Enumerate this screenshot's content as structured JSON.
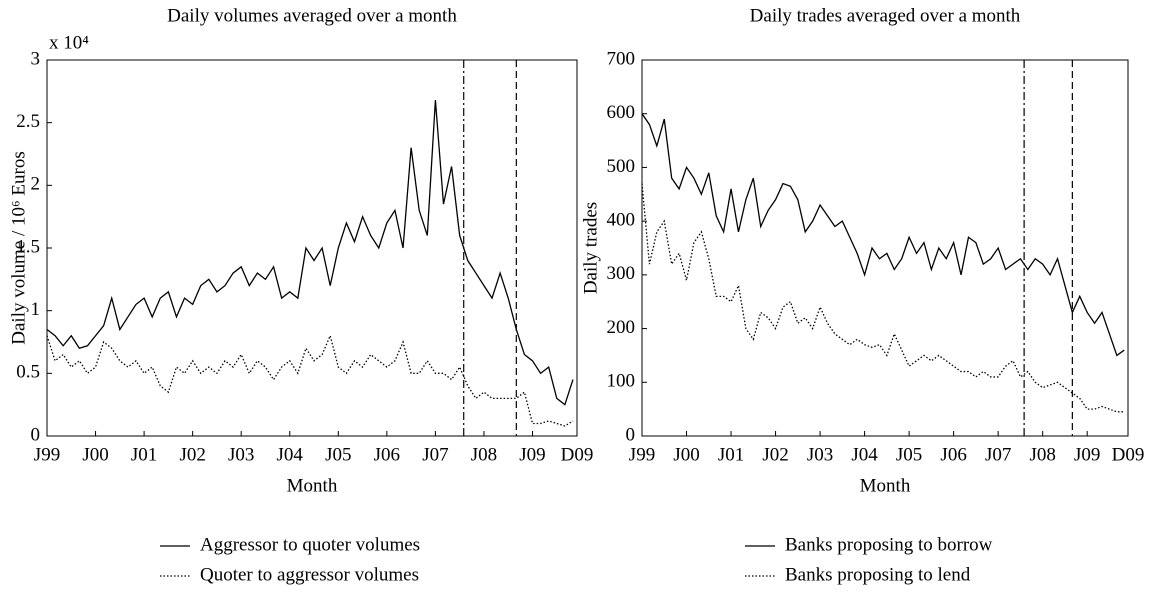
{
  "chart_data": [
    {
      "type": "line",
      "title": "Daily volumes averaged over a month",
      "x_label": "Month",
      "y_label": "Daily volume / 10⁶ Euros",
      "y_multiplier": "x 10⁴",
      "x": [
        0,
        2,
        4,
        6,
        8,
        10,
        12,
        14,
        16,
        18,
        20,
        22,
        24,
        26,
        28,
        30,
        32,
        34,
        36,
        38,
        40,
        42,
        44,
        46,
        48,
        50,
        52,
        54,
        56,
        58,
        60,
        62,
        64,
        66,
        68,
        70,
        72,
        74,
        76,
        78,
        80,
        82,
        84,
        86,
        88,
        90,
        92,
        94,
        96,
        98,
        100,
        102,
        104,
        106,
        108,
        110,
        112,
        114,
        116,
        118,
        120,
        122,
        124,
        126,
        128,
        130
      ],
      "xlim": [
        0,
        131
      ],
      "xticks": [
        {
          "value": 0,
          "label": "J99"
        },
        {
          "value": 12,
          "label": "J00"
        },
        {
          "value": 24,
          "label": "J01"
        },
        {
          "value": 36,
          "label": "J02"
        },
        {
          "value": 48,
          "label": "J03"
        },
        {
          "value": 60,
          "label": "J04"
        },
        {
          "value": 72,
          "label": "J05"
        },
        {
          "value": 84,
          "label": "J06"
        },
        {
          "value": 96,
          "label": "J07"
        },
        {
          "value": 108,
          "label": "J08"
        },
        {
          "value": 120,
          "label": "J09"
        },
        {
          "value": 131,
          "label": "D09"
        }
      ],
      "ylim": [
        0,
        3
      ],
      "yticks": [
        0,
        0.5,
        1,
        1.5,
        2,
        2.5,
        3
      ],
      "vlines": [
        {
          "x": 103,
          "style": "dashdot"
        },
        {
          "x": 116,
          "style": "dashed"
        }
      ],
      "series": [
        {
          "name": "Aggressor to quoter volumes",
          "color": "#000000",
          "style": "solid",
          "values": [
            0.85,
            0.8,
            0.72,
            0.8,
            0.7,
            0.72,
            0.8,
            0.88,
            1.1,
            0.85,
            0.95,
            1.05,
            1.1,
            0.95,
            1.1,
            1.15,
            0.95,
            1.1,
            1.05,
            1.2,
            1.25,
            1.15,
            1.2,
            1.3,
            1.35,
            1.2,
            1.3,
            1.25,
            1.35,
            1.1,
            1.15,
            1.1,
            1.5,
            1.4,
            1.5,
            1.2,
            1.5,
            1.7,
            1.55,
            1.75,
            1.6,
            1.5,
            1.7,
            1.8,
            1.5,
            2.3,
            1.8,
            1.6,
            2.68,
            1.85,
            2.15,
            1.6,
            1.4,
            1.3,
            1.2,
            1.1,
            1.3,
            1.1,
            0.85,
            0.65,
            0.6,
            0.5,
            0.55,
            0.3,
            0.25,
            0.45
          ]
        },
        {
          "name": "Quoter to aggressor volumes",
          "color": "#000000",
          "style": "dotted",
          "values": [
            0.8,
            0.6,
            0.65,
            0.55,
            0.6,
            0.5,
            0.55,
            0.75,
            0.7,
            0.6,
            0.55,
            0.6,
            0.5,
            0.55,
            0.4,
            0.35,
            0.55,
            0.5,
            0.6,
            0.5,
            0.55,
            0.5,
            0.6,
            0.55,
            0.65,
            0.5,
            0.6,
            0.55,
            0.45,
            0.55,
            0.6,
            0.5,
            0.7,
            0.6,
            0.65,
            0.8,
            0.55,
            0.5,
            0.6,
            0.55,
            0.65,
            0.6,
            0.55,
            0.6,
            0.75,
            0.5,
            0.5,
            0.6,
            0.5,
            0.5,
            0.45,
            0.55,
            0.4,
            0.3,
            0.35,
            0.3,
            0.3,
            0.3,
            0.3,
            0.35,
            0.1,
            0.1,
            0.12,
            0.1,
            0.08,
            0.12
          ]
        }
      ]
    },
    {
      "type": "line",
      "title": "Daily trades averaged over a month",
      "x_label": "Month",
      "y_label": "Daily trades",
      "x": [
        0,
        2,
        4,
        6,
        8,
        10,
        12,
        14,
        16,
        18,
        20,
        22,
        24,
        26,
        28,
        30,
        32,
        34,
        36,
        38,
        40,
        42,
        44,
        46,
        48,
        50,
        52,
        54,
        56,
        58,
        60,
        62,
        64,
        66,
        68,
        70,
        72,
        74,
        76,
        78,
        80,
        82,
        84,
        86,
        88,
        90,
        92,
        94,
        96,
        98,
        100,
        102,
        104,
        106,
        108,
        110,
        112,
        114,
        116,
        118,
        120,
        122,
        124,
        126,
        128,
        130
      ],
      "xlim": [
        0,
        131
      ],
      "xticks": [
        {
          "value": 0,
          "label": "J99"
        },
        {
          "value": 12,
          "label": "J00"
        },
        {
          "value": 24,
          "label": "J01"
        },
        {
          "value": 36,
          "label": "J02"
        },
        {
          "value": 48,
          "label": "J03"
        },
        {
          "value": 60,
          "label": "J04"
        },
        {
          "value": 72,
          "label": "J05"
        },
        {
          "value": 84,
          "label": "J06"
        },
        {
          "value": 96,
          "label": "J07"
        },
        {
          "value": 108,
          "label": "J08"
        },
        {
          "value": 120,
          "label": "J09"
        },
        {
          "value": 131,
          "label": "D09"
        }
      ],
      "ylim": [
        0,
        700
      ],
      "yticks": [
        0,
        100,
        200,
        300,
        400,
        500,
        600,
        700
      ],
      "vlines": [
        {
          "x": 103,
          "style": "dashdot"
        },
        {
          "x": 116,
          "style": "dashed"
        }
      ],
      "series": [
        {
          "name": "Banks proposing to borrow",
          "color": "#000000",
          "style": "solid",
          "values": [
            600,
            580,
            540,
            590,
            480,
            460,
            500,
            480,
            450,
            490,
            410,
            380,
            460,
            380,
            440,
            480,
            390,
            420,
            440,
            470,
            465,
            440,
            380,
            400,
            430,
            410,
            390,
            400,
            370,
            340,
            300,
            350,
            330,
            340,
            310,
            330,
            370,
            340,
            360,
            310,
            350,
            330,
            360,
            300,
            370,
            360,
            320,
            330,
            350,
            310,
            320,
            330,
            310,
            330,
            320,
            300,
            330,
            280,
            230,
            260,
            230,
            210,
            230,
            190,
            150,
            160
          ]
        },
        {
          "name": "Banks proposing to lend",
          "color": "#000000",
          "style": "dotted",
          "values": [
            470,
            320,
            380,
            400,
            320,
            340,
            290,
            360,
            380,
            330,
            260,
            260,
            250,
            280,
            200,
            180,
            230,
            220,
            200,
            240,
            250,
            210,
            220,
            200,
            240,
            210,
            190,
            180,
            170,
            180,
            170,
            165,
            170,
            150,
            190,
            160,
            130,
            140,
            150,
            140,
            150,
            140,
            130,
            120,
            120,
            110,
            120,
            110,
            110,
            130,
            140,
            110,
            120,
            100,
            90,
            95,
            100,
            90,
            80,
            70,
            50,
            50,
            55,
            50,
            45,
            45
          ]
        }
      ]
    }
  ]
}
